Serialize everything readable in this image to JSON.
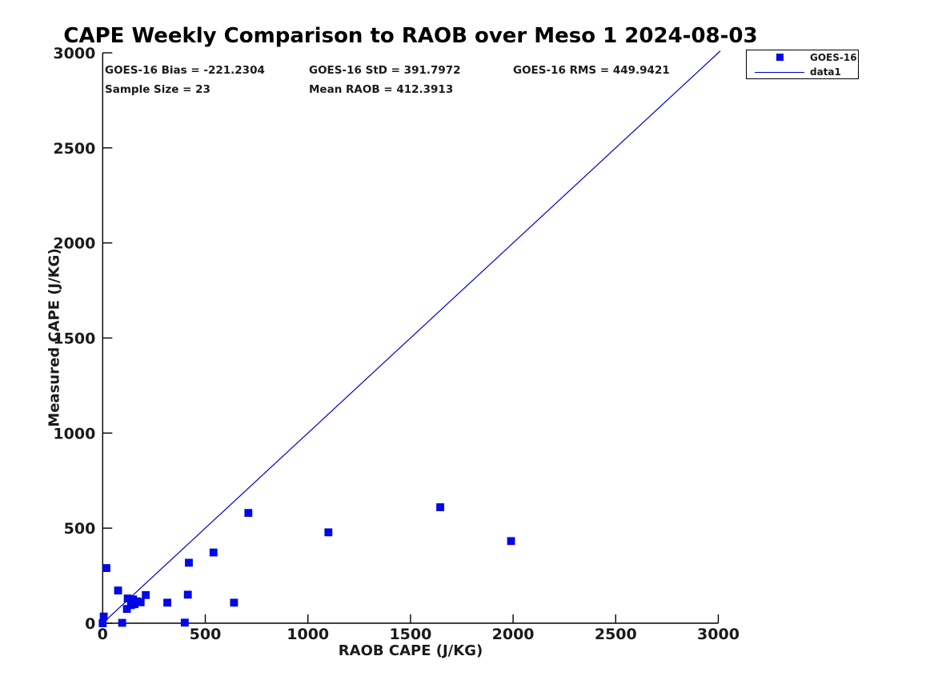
{
  "header": {
    "title": "CAPE Weekly Comparison to RAOB over Meso 1 2024-08-03"
  },
  "stats": {
    "rows": [
      {
        "cells": [
          {
            "text": "GOES-16 Bias = -221.2304"
          },
          {
            "text": "GOES-16 StD = 391.7972"
          },
          {
            "text": "GOES-16 RMS = 449.9421"
          }
        ]
      },
      {
        "cells": [
          {
            "text": "Sample Size = 23"
          },
          {
            "text": "Mean RAOB = 412.3913"
          }
        ]
      }
    ]
  },
  "legend": {
    "position": "top-right",
    "entries": [
      {
        "label": "GOES-16",
        "glyph": "square-marker",
        "color": "#0008f0"
      },
      {
        "label": "data1",
        "glyph": "line",
        "color": "#0000cd"
      }
    ]
  },
  "chart_data": {
    "type": "scatter",
    "title": "CAPE Weekly Comparison to RAOB over Meso 1 2024-08-03",
    "xlabel": "RAOB CAPE (J/KG)",
    "ylabel": "Measured CAPE (J/KG)",
    "xlim": [
      0,
      3000
    ],
    "ylim": [
      0,
      3000
    ],
    "xticks": [
      0,
      500,
      1000,
      1500,
      2000,
      2500,
      3000
    ],
    "yticks": [
      0,
      500,
      1000,
      1500,
      2000,
      2500,
      3000
    ],
    "grid": false,
    "axis_color": "#000000",
    "background": "#ffffff",
    "stats_text": [
      "GOES-16 Bias = -221.2304",
      "GOES-16 StD = 391.7972",
      "GOES-16 RMS = 449.9421",
      "Sample Size = 23",
      "Mean RAOB = 412.3913"
    ],
    "series": [
      {
        "name": "data1",
        "type": "line",
        "color": "#0000cd",
        "width": 1.2,
        "points": [
          [
            0,
            0
          ],
          [
            3010,
            3010
          ]
        ]
      },
      {
        "name": "GOES-16",
        "type": "scatter",
        "marker": "square",
        "marker_size": 9,
        "color": "#0008f0",
        "edge_color": "#0000c8",
        "points": [
          [
            0,
            0
          ],
          [
            5,
            35
          ],
          [
            18,
            290
          ],
          [
            75,
            172
          ],
          [
            95,
            2
          ],
          [
            118,
            75
          ],
          [
            122,
            130
          ],
          [
            138,
            95
          ],
          [
            148,
            125
          ],
          [
            155,
            100
          ],
          [
            168,
            115
          ],
          [
            185,
            110
          ],
          [
            210,
            148
          ],
          [
            315,
            108
          ],
          [
            400,
            3
          ],
          [
            415,
            150
          ],
          [
            420,
            318
          ],
          [
            540,
            372
          ],
          [
            640,
            108
          ],
          [
            710,
            580
          ],
          [
            1100,
            478
          ],
          [
            1645,
            610
          ],
          [
            1990,
            432
          ]
        ]
      }
    ]
  }
}
